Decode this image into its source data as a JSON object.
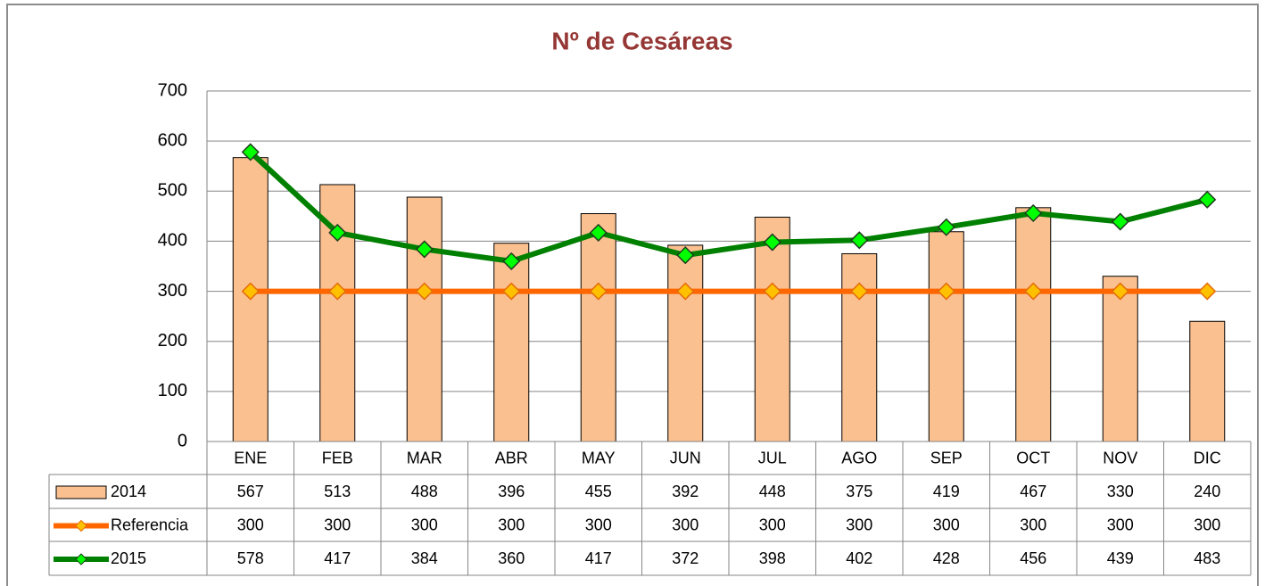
{
  "chart_data": {
    "type": "bar",
    "title": "Nº de Cesáreas",
    "categories": [
      "ENE",
      "FEB",
      "MAR",
      "ABR",
      "MAY",
      "JUN",
      "JUL",
      "AGO",
      "SEP",
      "OCT",
      "NOV",
      "DIC"
    ],
    "series": [
      {
        "name": "2014",
        "type": "bar",
        "color": "#FAC090",
        "values": [
          567,
          513,
          488,
          396,
          455,
          392,
          448,
          375,
          419,
          467,
          330,
          240
        ]
      },
      {
        "name": "Referencia",
        "type": "line",
        "color": "#FF6600",
        "marker_color": "#FFC000",
        "values": [
          300,
          300,
          300,
          300,
          300,
          300,
          300,
          300,
          300,
          300,
          300,
          300
        ]
      },
      {
        "name": "2015",
        "type": "line",
        "color": "#008000",
        "marker_color": "#00FF00",
        "values": [
          578,
          417,
          384,
          360,
          417,
          372,
          398,
          402,
          428,
          456,
          439,
          483
        ]
      }
    ],
    "ylim": [
      0,
      700
    ],
    "yticks": [
      0,
      100,
      200,
      300,
      400,
      500,
      600,
      700
    ],
    "grid": true,
    "data_table": true
  }
}
